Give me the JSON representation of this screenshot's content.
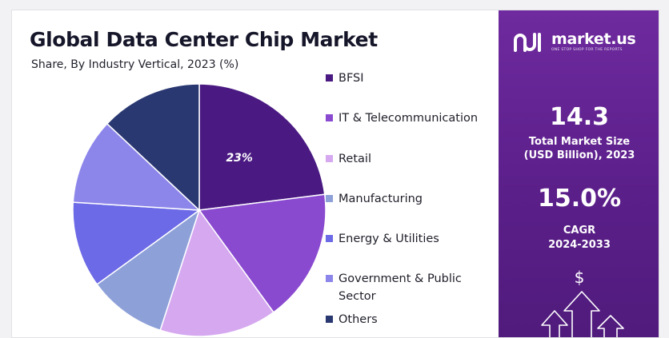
{
  "title": "Global Data Center Chip Market",
  "subtitle": "Share, By Industry Vertical, 2023 (%)",
  "chart_data": {
    "type": "pie",
    "categories": [
      "BFSI",
      "IT & Telecommunication",
      "Retail",
      "Manufacturing",
      "Energy & Utilities",
      "Government & Public Sector",
      "Others"
    ],
    "values": [
      23,
      17,
      15,
      10,
      11,
      11,
      13
    ],
    "data_labels": [
      "23%",
      "",
      "",
      "",
      "",
      "",
      ""
    ],
    "colors": [
      "#4a1a82",
      "#8a4ad0",
      "#d5a8f0",
      "#8da0d8",
      "#6c6ae6",
      "#8d86ea",
      "#2a3872"
    ],
    "legend_position": "right"
  },
  "legend": [
    {
      "label": "BFSI",
      "color": "#4a1a82"
    },
    {
      "label": "IT & Telecommunication",
      "color": "#8a4ad0"
    },
    {
      "label": "Retail",
      "color": "#d5a8f0"
    },
    {
      "label": "Manufacturing",
      "color": "#8da0d8"
    },
    {
      "label": "Energy & Utilities",
      "color": "#6c6ae6"
    },
    {
      "label": "Government & Public Sector",
      "color": "#8d86ea"
    },
    {
      "label": "Others",
      "color": "#2a3872"
    }
  ],
  "brand": {
    "name": "market.us",
    "tagline": "ONE STOP SHOP FOR THE REPORTS"
  },
  "metrics": {
    "market_size_value": "14.3",
    "market_size_label_1": "Total Market Size",
    "market_size_label_2": "(USD Billion), 2023",
    "cagr_value": "15.0%",
    "cagr_label": "CAGR",
    "cagr_period": "2024-2033",
    "currency_symbol": "$"
  }
}
